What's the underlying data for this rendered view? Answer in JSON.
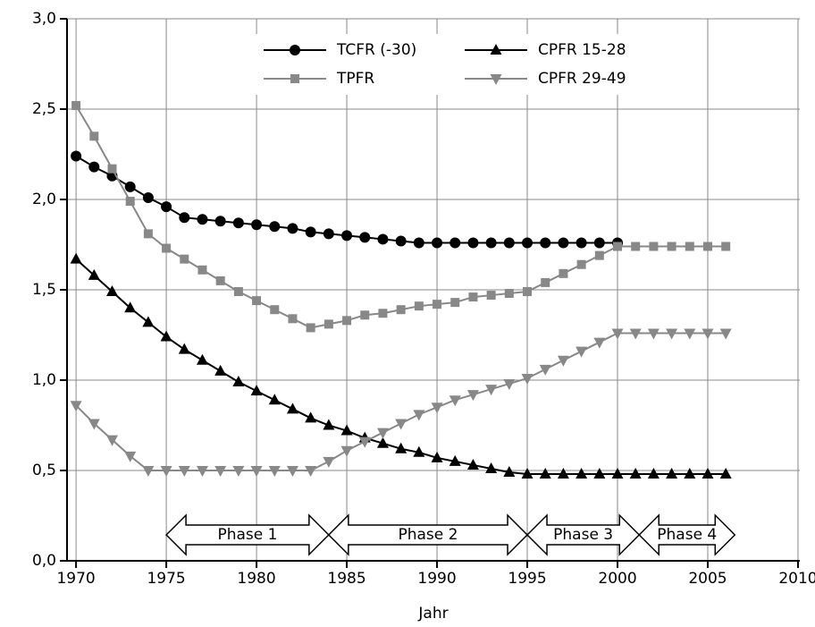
{
  "chart_data": {
    "type": "line",
    "x_label": "Jahr",
    "x": [
      1970,
      1971,
      1972,
      1973,
      1974,
      1975,
      1976,
      1977,
      1978,
      1979,
      1980,
      1981,
      1982,
      1983,
      1984,
      1985,
      1986,
      1987,
      1988,
      1989,
      1990,
      1991,
      1992,
      1993,
      1994,
      1995,
      1996,
      1997,
      1998,
      1999,
      2000,
      2001,
      2002,
      2003,
      2004,
      2005,
      2006
    ],
    "series": [
      {
        "name": "TCFR (-30)",
        "color": "#000000",
        "marker": "circle",
        "values": [
          2.24,
          2.18,
          2.13,
          2.07,
          2.01,
          1.96,
          1.9,
          1.89,
          1.88,
          1.87,
          1.86,
          1.85,
          1.84,
          1.82,
          1.81,
          1.8,
          1.79,
          1.78,
          1.77,
          1.76,
          1.76,
          1.76,
          1.76,
          1.76,
          1.76,
          1.76,
          1.76,
          1.76,
          1.76,
          1.76,
          1.76,
          null,
          null,
          null,
          null,
          null,
          null
        ]
      },
      {
        "name": "TPFR",
        "color": "#888888",
        "marker": "square",
        "values": [
          2.52,
          2.35,
          2.17,
          1.99,
          1.81,
          1.73,
          1.67,
          1.61,
          1.55,
          1.49,
          1.44,
          1.39,
          1.34,
          1.29,
          1.31,
          1.33,
          1.36,
          1.37,
          1.39,
          1.41,
          1.42,
          1.43,
          1.46,
          1.47,
          1.48,
          1.49,
          1.54,
          1.59,
          1.64,
          1.69,
          1.74,
          1.74,
          1.74,
          1.74,
          1.74,
          1.74,
          1.74
        ]
      },
      {
        "name": "CPFR 15-28",
        "color": "#000000",
        "marker": "triangle-up",
        "values": [
          1.67,
          1.58,
          1.49,
          1.4,
          1.32,
          1.24,
          1.17,
          1.11,
          1.05,
          0.99,
          0.94,
          0.89,
          0.84,
          0.79,
          0.75,
          0.72,
          0.68,
          0.65,
          0.62,
          0.6,
          0.57,
          0.55,
          0.53,
          0.51,
          0.49,
          0.48,
          0.48,
          0.48,
          0.48,
          0.48,
          0.48,
          0.48,
          0.48,
          0.48,
          0.48,
          0.48,
          0.48
        ]
      },
      {
        "name": "CPFR 29-49",
        "color": "#888888",
        "marker": "triangle-down",
        "values": [
          0.86,
          0.76,
          0.67,
          0.58,
          0.5,
          0.5,
          0.5,
          0.5,
          0.5,
          0.5,
          0.5,
          0.5,
          0.5,
          0.5,
          0.55,
          0.61,
          0.66,
          0.71,
          0.76,
          0.81,
          0.85,
          0.89,
          0.92,
          0.95,
          0.98,
          1.01,
          1.06,
          1.11,
          1.16,
          1.21,
          1.26,
          1.26,
          1.26,
          1.26,
          1.26,
          1.26,
          1.26
        ]
      }
    ],
    "xlim": [
      1969.5,
      2010.1
    ],
    "xticks": [
      1970,
      1975,
      1980,
      1985,
      1990,
      1995,
      2000,
      2005,
      2010
    ],
    "ylim": [
      0,
      3
    ],
    "yticks": [
      {
        "value": 0,
        "label": "0,0"
      },
      {
        "value": 0.5,
        "label": "0,5"
      },
      {
        "value": 1,
        "label": "1,0"
      },
      {
        "value": 1.5,
        "label": "1,5"
      },
      {
        "value": 2,
        "label": "2,0"
      },
      {
        "value": 2.5,
        "label": "2,5"
      },
      {
        "value": 3,
        "label": "3,0"
      }
    ],
    "grid": true,
    "phases": [
      {
        "label": "Phase 1",
        "start": 1975,
        "end": 1984
      },
      {
        "label": "Phase 2",
        "start": 1984,
        "end": 1995
      },
      {
        "label": "Phase 3",
        "start": 1995,
        "end": 2001.2
      },
      {
        "label": "Phase 4",
        "start": 2001.2,
        "end": 2006.5
      }
    ]
  }
}
